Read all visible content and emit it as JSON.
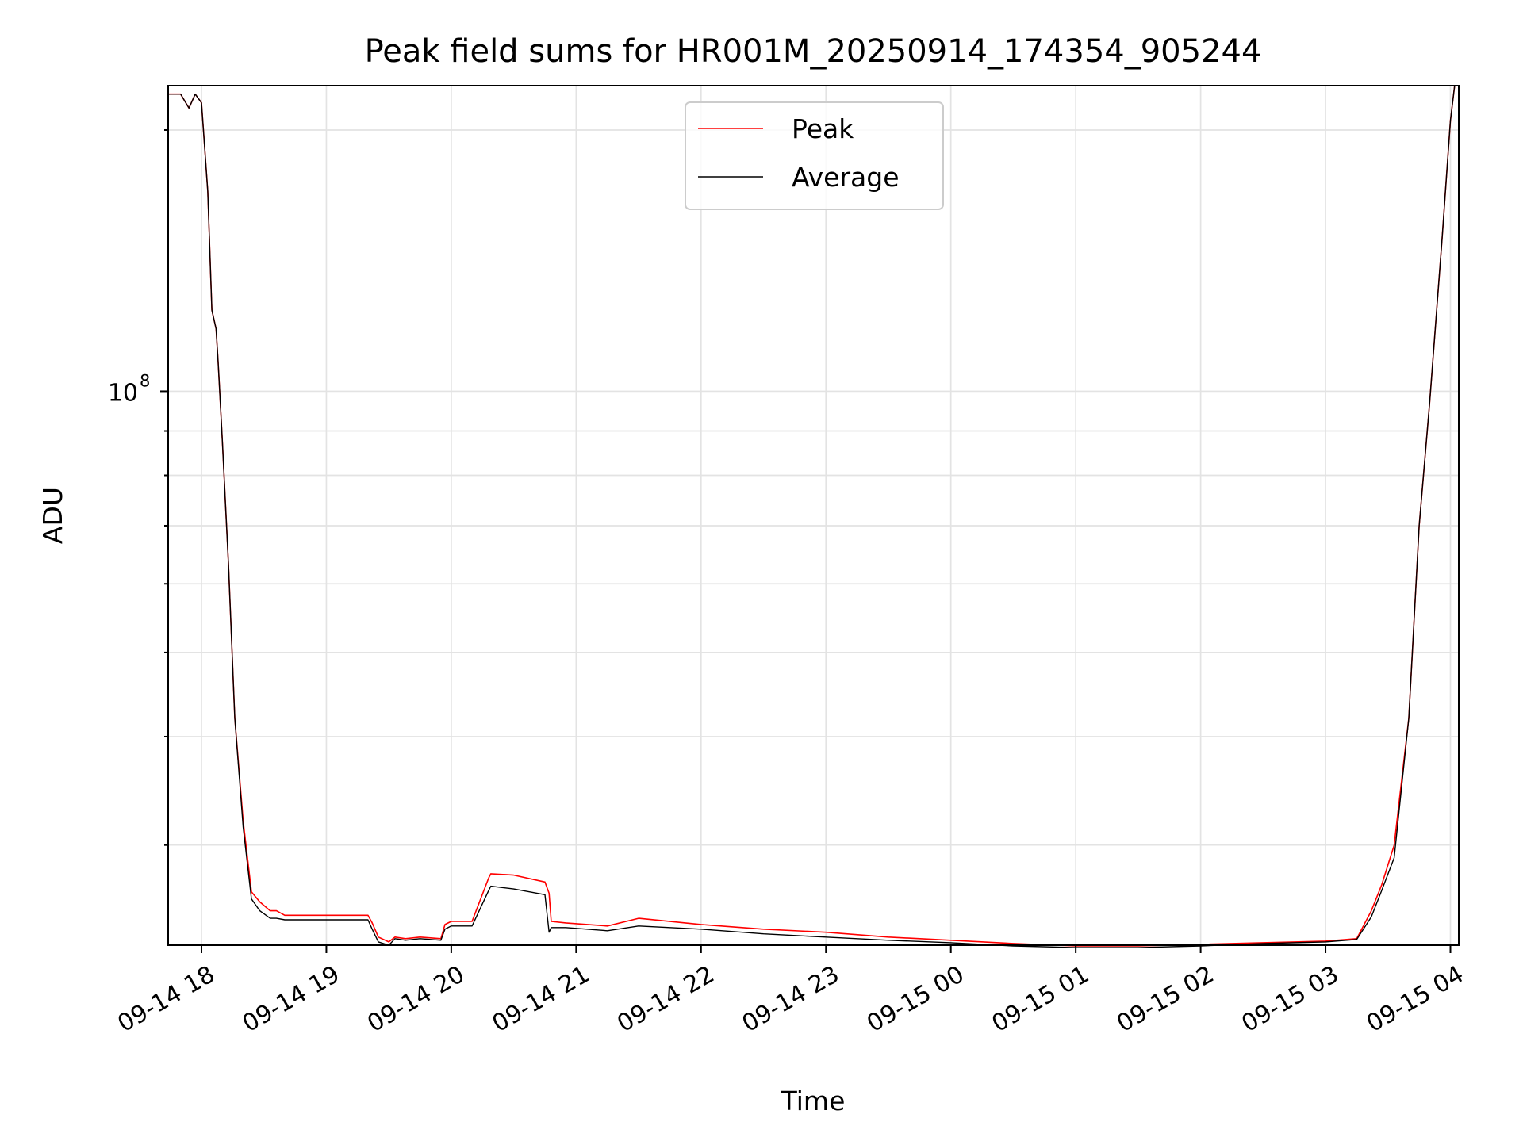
{
  "chart_data": {
    "type": "line",
    "title": "Peak field sums for HR001M_20250914_174354_905244",
    "xlabel": "Time",
    "ylabel": "ADU",
    "yscale": "log",
    "ylim": [
      23000000,
      225000000
    ],
    "xlim": [
      "2025-09-14T17:44:00",
      "2025-09-15T04:04:00"
    ],
    "x_tick_labels": [
      "09-14 18",
      "09-14 19",
      "09-14 20",
      "09-14 21",
      "09-14 22",
      "09-14 23",
      "09-15 00",
      "09-15 01",
      "09-15 02",
      "09-15 03",
      "09-15 04"
    ],
    "y_tick_label": "10",
    "y_tick_label_exponent": "8",
    "y_tick_value": 100000000,
    "grid": true,
    "legend_position": "upper-center",
    "x": [
      "2025-09-14T17:44:00",
      "2025-09-14T17:50:00",
      "2025-09-14T17:54:00",
      "2025-09-14T17:57:00",
      "2025-09-14T18:00:00",
      "2025-09-14T18:03:00",
      "2025-09-14T18:05:00",
      "2025-09-14T18:07:00",
      "2025-09-14T18:08:00",
      "2025-09-14T18:10:00",
      "2025-09-14T18:13:00",
      "2025-09-14T18:16:00",
      "2025-09-14T18:20:00",
      "2025-09-14T18:24:00",
      "2025-09-14T18:28:00",
      "2025-09-14T18:33:00",
      "2025-09-14T18:36:00",
      "2025-09-14T18:40:00",
      "2025-09-14T18:44:00",
      "2025-09-14T18:50:00",
      "2025-09-14T18:55:00",
      "2025-09-14T19:05:00",
      "2025-09-14T19:20:00",
      "2025-09-14T19:22:00",
      "2025-09-14T19:25:00",
      "2025-09-14T19:30:00",
      "2025-09-14T19:33:00",
      "2025-09-14T19:38:00",
      "2025-09-14T19:45:00",
      "2025-09-14T19:55:00",
      "2025-09-14T19:57:00",
      "2025-09-14T20:00:00",
      "2025-09-14T20:10:00",
      "2025-09-14T20:18:00",
      "2025-09-14T20:19:00",
      "2025-09-14T20:30:00",
      "2025-09-14T20:45:00",
      "2025-09-14T20:47:00",
      "2025-09-14T20:48:00",
      "2025-09-14T20:55:00",
      "2025-09-14T21:15:00",
      "2025-09-14T21:30:00",
      "2025-09-14T22:00:00",
      "2025-09-14T22:30:00",
      "2025-09-14T23:00:00",
      "2025-09-14T23:30:00",
      "2025-09-15T00:00:00",
      "2025-09-15T00:30:00",
      "2025-09-15T01:00:00",
      "2025-09-15T01:30:00",
      "2025-09-15T02:00:00",
      "2025-09-15T02:30:00",
      "2025-09-15T03:00:00",
      "2025-09-15T03:15:00",
      "2025-09-15T03:22:00",
      "2025-09-15T03:27:00",
      "2025-09-15T03:33:00",
      "2025-09-15T03:40:00",
      "2025-09-15T03:45:00",
      "2025-09-15T03:50:00",
      "2025-09-15T03:56:00",
      "2025-09-15T04:00:00",
      "2025-09-15T04:02:00"
    ],
    "series": [
      {
        "name": "Peak",
        "color": "#ff0000",
        "values": [
          220000000,
          220000000,
          212000000,
          220000000,
          215000000,
          170000000,
          124000000,
          118000000,
          108000000,
          88000000,
          63000000,
          42000000,
          32000000,
          26500000,
          25800000,
          25200000,
          25200000,
          24900000,
          24900000,
          24900000,
          24900000,
          24900000,
          24900000,
          24400000,
          23500000,
          23200000,
          23500000,
          23400000,
          23500000,
          23400000,
          24300000,
          24500000,
          24500000,
          27500000,
          27800000,
          27700000,
          27200000,
          26400000,
          24500000,
          24400000,
          24200000,
          24700000,
          24300000,
          24000000,
          23800000,
          23500000,
          23300000,
          23100000,
          22950000,
          22950000,
          23050000,
          23150000,
          23250000,
          23400000,
          25200000,
          27000000,
          30000000,
          42000000,
          70000000,
          97000000,
          150000000,
          205000000,
          225000000
        ]
      },
      {
        "name": "Average",
        "color": "#000000",
        "values": [
          220000000,
          220000000,
          212000000,
          220000000,
          215000000,
          170000000,
          124000000,
          118000000,
          108000000,
          88000000,
          63000000,
          42000000,
          31500000,
          26000000,
          25200000,
          24700000,
          24700000,
          24600000,
          24600000,
          24600000,
          24600000,
          24600000,
          24600000,
          24000000,
          23200000,
          23000000,
          23400000,
          23300000,
          23400000,
          23300000,
          24000000,
          24200000,
          24200000,
          26600000,
          26900000,
          26700000,
          26300000,
          23800000,
          24100000,
          24100000,
          23900000,
          24200000,
          24000000,
          23700000,
          23500000,
          23300000,
          23150000,
          22950000,
          22850000,
          22850000,
          22950000,
          23100000,
          23200000,
          23350000,
          24800000,
          26600000,
          29000000,
          42000000,
          70000000,
          97000000,
          150000000,
          205000000,
          225000000
        ]
      }
    ]
  }
}
